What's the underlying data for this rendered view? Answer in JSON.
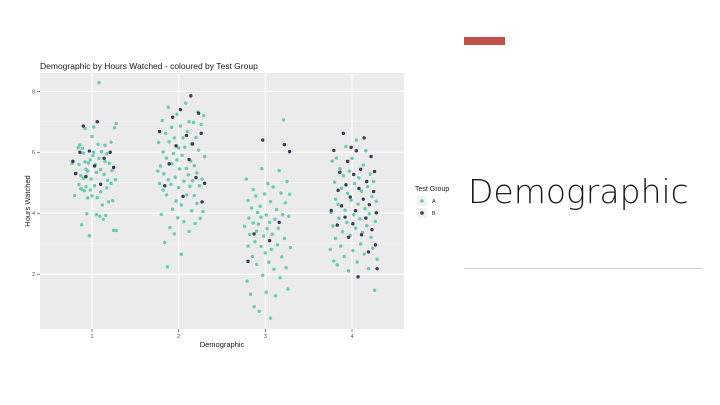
{
  "slide": {
    "title": "Demographic",
    "accent_color": "#c0504d"
  },
  "chart_data": {
    "type": "scatter",
    "title": "Demographic by Hours Watched - coloured by Test Group",
    "xlabel": "Demographic",
    "ylabel": "Hours Watched",
    "categories": [
      "1",
      "2",
      "3",
      "4"
    ],
    "y_ticks": [
      "2",
      "4",
      "6",
      "8"
    ],
    "ylim": [
      0.2,
      8.6
    ],
    "xlim": [
      0.4,
      4.6
    ],
    "grid": true,
    "legend": {
      "title": "Test Group",
      "position": "right"
    },
    "series": [
      {
        "name": "A",
        "color": "#66cdaa",
        "points": [
          [
            0.77,
            5.63
          ],
          [
            0.8,
            4.58
          ],
          [
            0.82,
            5.31
          ],
          [
            0.84,
            6.15
          ],
          [
            0.85,
            5.6
          ],
          [
            0.85,
            4.94
          ],
          [
            0.86,
            6.24
          ],
          [
            0.87,
            4.8
          ],
          [
            0.87,
            5.23
          ],
          [
            0.88,
            3.62
          ],
          [
            0.88,
            4.79
          ],
          [
            0.89,
            6.13
          ],
          [
            0.9,
            5.15
          ],
          [
            0.9,
            5.97
          ],
          [
            0.91,
            4.74
          ],
          [
            0.92,
            6.78
          ],
          [
            0.92,
            5.68
          ],
          [
            0.93,
            5.44
          ],
          [
            0.93,
            4.87
          ],
          [
            0.94,
            3.98
          ],
          [
            0.95,
            5.38
          ],
          [
            0.95,
            4.5
          ],
          [
            0.96,
            5.65
          ],
          [
            0.97,
            3.26
          ],
          [
            0.98,
            5.75
          ],
          [
            0.98,
            4.76
          ],
          [
            0.99,
            5.12
          ],
          [
            1.0,
            6.52
          ],
          [
            1.0,
            4.57
          ],
          [
            1.01,
            5.89
          ],
          [
            1.02,
            6.83
          ],
          [
            1.02,
            6.0
          ],
          [
            1.03,
            4.9
          ],
          [
            1.04,
            5.59
          ],
          [
            1.05,
            3.95
          ],
          [
            1.05,
            5.34
          ],
          [
            1.06,
            4.51
          ],
          [
            1.07,
            6.26
          ],
          [
            1.08,
            8.28
          ],
          [
            1.08,
            5.8
          ],
          [
            1.09,
            3.9
          ],
          [
            1.1,
            5.43
          ],
          [
            1.1,
            4.7
          ],
          [
            1.11,
            6.02
          ],
          [
            1.12,
            4.27
          ],
          [
            1.13,
            3.8
          ],
          [
            1.14,
            5.27
          ],
          [
            1.15,
            6.23
          ],
          [
            1.15,
            5.69
          ],
          [
            1.16,
            3.93
          ],
          [
            1.17,
            4.83
          ],
          [
            1.17,
            5.95
          ],
          [
            1.18,
            5.08
          ],
          [
            1.19,
            4.37
          ],
          [
            1.2,
            5.64
          ],
          [
            1.22,
            4.98
          ],
          [
            1.22,
            6.33
          ],
          [
            1.23,
            5.4
          ],
          [
            1.24,
            4.41
          ],
          [
            1.25,
            3.44
          ],
          [
            1.26,
            6.8
          ],
          [
            1.27,
            5.1
          ],
          [
            1.28,
            3.43
          ],
          [
            1.28,
            6.94
          ],
          [
            1.76,
            5.38
          ],
          [
            1.77,
            6.32
          ],
          [
            1.78,
            4.97
          ],
          [
            1.79,
            5.55
          ],
          [
            1.8,
            3.96
          ],
          [
            1.81,
            7.04
          ],
          [
            1.82,
            6.01
          ],
          [
            1.82,
            4.76
          ],
          [
            1.83,
            5.29
          ],
          [
            1.84,
            3.04
          ],
          [
            1.85,
            6.62
          ],
          [
            1.86,
            5.81
          ],
          [
            1.86,
            4.6
          ],
          [
            1.87,
            2.24
          ],
          [
            1.88,
            5.1
          ],
          [
            1.88,
            7.48
          ],
          [
            1.89,
            6.34
          ],
          [
            1.9,
            3.53
          ],
          [
            1.91,
            4.95
          ],
          [
            1.92,
            5.62
          ],
          [
            1.92,
            6.82
          ],
          [
            1.93,
            4.13
          ],
          [
            1.94,
            5.96
          ],
          [
            1.95,
            3.32
          ],
          [
            1.95,
            6.47
          ],
          [
            1.96,
            5.18
          ],
          [
            1.97,
            4.4
          ],
          [
            1.98,
            7.25
          ],
          [
            1.98,
            5.75
          ],
          [
            1.99,
            3.85
          ],
          [
            2.0,
            6.14
          ],
          [
            2.0,
            4.84
          ],
          [
            2.01,
            5.45
          ],
          [
            2.02,
            6.86
          ],
          [
            2.03,
            2.65
          ],
          [
            2.03,
            4.27
          ],
          [
            2.04,
            5.9
          ],
          [
            2.05,
            6.47
          ],
          [
            2.06,
            5.05
          ],
          [
            2.06,
            3.72
          ],
          [
            2.07,
            6.16
          ],
          [
            2.08,
            7.61
          ],
          [
            2.09,
            4.6
          ],
          [
            2.09,
            5.47
          ],
          [
            2.1,
            6.68
          ],
          [
            2.11,
            5.26
          ],
          [
            2.12,
            3.4
          ],
          [
            2.12,
            7.0
          ],
          [
            2.13,
            4.88
          ],
          [
            2.14,
            5.71
          ],
          [
            2.15,
            6.27
          ],
          [
            2.15,
            4.08
          ],
          [
            2.16,
            5.06
          ],
          [
            2.17,
            6.98
          ],
          [
            2.18,
            4.58
          ],
          [
            2.18,
            5.56
          ],
          [
            2.19,
            3.66
          ],
          [
            2.2,
            6.48
          ],
          [
            2.21,
            5.32
          ],
          [
            2.21,
            4.32
          ],
          [
            2.22,
            7.32
          ],
          [
            2.23,
            6.07
          ],
          [
            2.24,
            4.9
          ],
          [
            2.25,
            3.83
          ],
          [
            2.26,
            6.91
          ],
          [
            2.27,
            5.12
          ],
          [
            2.28,
            4.05
          ],
          [
            2.29,
            7.2
          ],
          [
            2.3,
            5.86
          ],
          [
            2.76,
            3.57
          ],
          [
            2.78,
            5.12
          ],
          [
            2.79,
            1.77
          ],
          [
            2.8,
            2.92
          ],
          [
            2.8,
            4.42
          ],
          [
            2.81,
            3.84
          ],
          [
            2.82,
            3.3
          ],
          [
            2.83,
            1.34
          ],
          [
            2.84,
            4.17
          ],
          [
            2.85,
            2.58
          ],
          [
            2.86,
            3.68
          ],
          [
            2.86,
            4.78
          ],
          [
            2.87,
            0.93
          ],
          [
            2.88,
            3.06
          ],
          [
            2.89,
            4.56
          ],
          [
            2.9,
            3.41
          ],
          [
            2.9,
            2.32
          ],
          [
            2.91,
            4.02
          ],
          [
            2.92,
            3.64
          ],
          [
            2.93,
            0.78
          ],
          [
            2.94,
            4.23
          ],
          [
            2.95,
            2.91
          ],
          [
            2.95,
            3.87
          ],
          [
            2.96,
            5.46
          ],
          [
            2.97,
            1.96
          ],
          [
            2.98,
            3.25
          ],
          [
            2.99,
            4.63
          ],
          [
            3.0,
            2.7
          ],
          [
            3.01,
            3.94
          ],
          [
            3.01,
            1.41
          ],
          [
            3.02,
            3.49
          ],
          [
            3.03,
            4.97
          ],
          [
            3.04,
            2.39
          ],
          [
            3.05,
            3.7
          ],
          [
            3.06,
            0.56
          ],
          [
            3.06,
            4.38
          ],
          [
            3.07,
            2.81
          ],
          [
            3.08,
            3.31
          ],
          [
            3.09,
            4.86
          ],
          [
            3.1,
            2.16
          ],
          [
            3.11,
            3.8
          ],
          [
            3.12,
            1.29
          ],
          [
            3.13,
            4.12
          ],
          [
            3.14,
            2.96
          ],
          [
            3.15,
            3.51
          ],
          [
            3.16,
            5.4
          ],
          [
            3.17,
            1.88
          ],
          [
            3.18,
            4.66
          ],
          [
            3.19,
            2.57
          ],
          [
            3.2,
            3.95
          ],
          [
            3.21,
            7.06
          ],
          [
            3.22,
            3.17
          ],
          [
            3.23,
            4.34
          ],
          [
            3.24,
            2.21
          ],
          [
            3.25,
            5.04
          ],
          [
            3.26,
            1.51
          ],
          [
            3.27,
            3.9
          ],
          [
            3.28,
            4.62
          ],
          [
            3.29,
            2.87
          ],
          [
            3.75,
            2.81
          ],
          [
            3.76,
            4.02
          ],
          [
            3.77,
            5.71
          ],
          [
            3.78,
            3.58
          ],
          [
            3.79,
            2.43
          ],
          [
            3.8,
            5.02
          ],
          [
            3.81,
            4.46
          ],
          [
            3.81,
            3.17
          ],
          [
            3.82,
            5.81
          ],
          [
            3.83,
            2.3
          ],
          [
            3.84,
            4.29
          ],
          [
            3.85,
            3.83
          ],
          [
            3.86,
            5.46
          ],
          [
            3.87,
            2.92
          ],
          [
            3.88,
            4.82
          ],
          [
            3.89,
            3.39
          ],
          [
            3.9,
            5.23
          ],
          [
            3.91,
            2.58
          ],
          [
            3.92,
            4.1
          ],
          [
            3.93,
            6.19
          ],
          [
            3.94,
            3.7
          ],
          [
            3.95,
            4.65
          ],
          [
            3.96,
            2.11
          ],
          [
            3.97,
            5.38
          ],
          [
            3.98,
            3.27
          ],
          [
            3.99,
            4.43
          ],
          [
            4.0,
            5.8
          ],
          [
            4.01,
            2.77
          ],
          [
            4.02,
            3.95
          ],
          [
            4.03,
            4.97
          ],
          [
            4.04,
            3.51
          ],
          [
            4.05,
            6.4
          ],
          [
            4.06,
            2.4
          ],
          [
            4.07,
            4.3
          ],
          [
            4.08,
            5.16
          ],
          [
            4.09,
            3.81
          ],
          [
            4.1,
            2.99
          ],
          [
            4.11,
            4.72
          ],
          [
            4.12,
            3.37
          ],
          [
            4.13,
            5.58
          ],
          [
            4.14,
            2.66
          ],
          [
            4.15,
            4.15
          ],
          [
            4.16,
            6.05
          ],
          [
            4.17,
            3.59
          ],
          [
            4.18,
            4.87
          ],
          [
            4.19,
            2.18
          ],
          [
            4.2,
            3.98
          ],
          [
            4.21,
            5.28
          ],
          [
            4.22,
            3.21
          ],
          [
            4.23,
            4.55
          ],
          [
            4.24,
            2.85
          ],
          [
            4.25,
            5.04
          ],
          [
            4.26,
            1.47
          ],
          [
            4.27,
            3.73
          ],
          [
            4.28,
            4.39
          ],
          [
            4.29,
            2.49
          ]
        ]
      },
      {
        "name": "B",
        "color": "#3b3a5c",
        "points": [
          [
            0.78,
            5.7
          ],
          [
            0.81,
            5.3
          ],
          [
            0.86,
            6.0
          ],
          [
            0.9,
            6.86
          ],
          [
            0.93,
            5.2
          ],
          [
            0.97,
            6.04
          ],
          [
            1.03,
            5.55
          ],
          [
            1.06,
            7.0
          ],
          [
            1.1,
            4.95
          ],
          [
            1.14,
            5.8
          ],
          [
            1.21,
            6.0
          ],
          [
            1.25,
            5.5
          ],
          [
            1.78,
            6.68
          ],
          [
            1.84,
            4.9
          ],
          [
            1.89,
            5.62
          ],
          [
            1.93,
            7.15
          ],
          [
            1.97,
            6.21
          ],
          [
            2.02,
            7.4
          ],
          [
            2.05,
            4.55
          ],
          [
            2.09,
            6.55
          ],
          [
            2.12,
            5.76
          ],
          [
            2.14,
            7.85
          ],
          [
            2.16,
            6.27
          ],
          [
            2.2,
            5.17
          ],
          [
            2.23,
            7.28
          ],
          [
            2.26,
            6.62
          ],
          [
            2.27,
            4.37
          ],
          [
            2.3,
            4.98
          ],
          [
            2.8,
            2.42
          ],
          [
            2.87,
            3.32
          ],
          [
            2.97,
            6.4
          ],
          [
            3.05,
            3.1
          ],
          [
            3.16,
            3.7
          ],
          [
            3.22,
            6.25
          ],
          [
            3.28,
            6.02
          ],
          [
            3.76,
            4.09
          ],
          [
            3.79,
            6.06
          ],
          [
            3.83,
            3.61
          ],
          [
            3.84,
            4.75
          ],
          [
            3.86,
            5.34
          ],
          [
            3.88,
            4.24
          ],
          [
            3.9,
            6.62
          ],
          [
            3.92,
            3.87
          ],
          [
            3.93,
            4.93
          ],
          [
            3.95,
            5.7
          ],
          [
            3.96,
            3.21
          ],
          [
            3.98,
            4.53
          ],
          [
            3.99,
            6.16
          ],
          [
            4.01,
            3.65
          ],
          [
            4.02,
            5.27
          ],
          [
            4.04,
            4.08
          ],
          [
            4.05,
            6.05
          ],
          [
            4.07,
            1.91
          ],
          [
            4.08,
            4.81
          ],
          [
            4.1,
            5.44
          ],
          [
            4.11,
            3.29
          ],
          [
            4.13,
            4.46
          ],
          [
            4.14,
            6.47
          ],
          [
            4.16,
            3.84
          ],
          [
            4.17,
            5.04
          ],
          [
            4.19,
            2.73
          ],
          [
            4.2,
            4.28
          ],
          [
            4.22,
            5.86
          ],
          [
            4.23,
            3.46
          ],
          [
            4.25,
            4.71
          ],
          [
            4.26,
            5.37
          ],
          [
            4.27,
            2.96
          ],
          [
            4.28,
            4.01
          ],
          [
            4.29,
            2.18
          ]
        ]
      }
    ]
  }
}
